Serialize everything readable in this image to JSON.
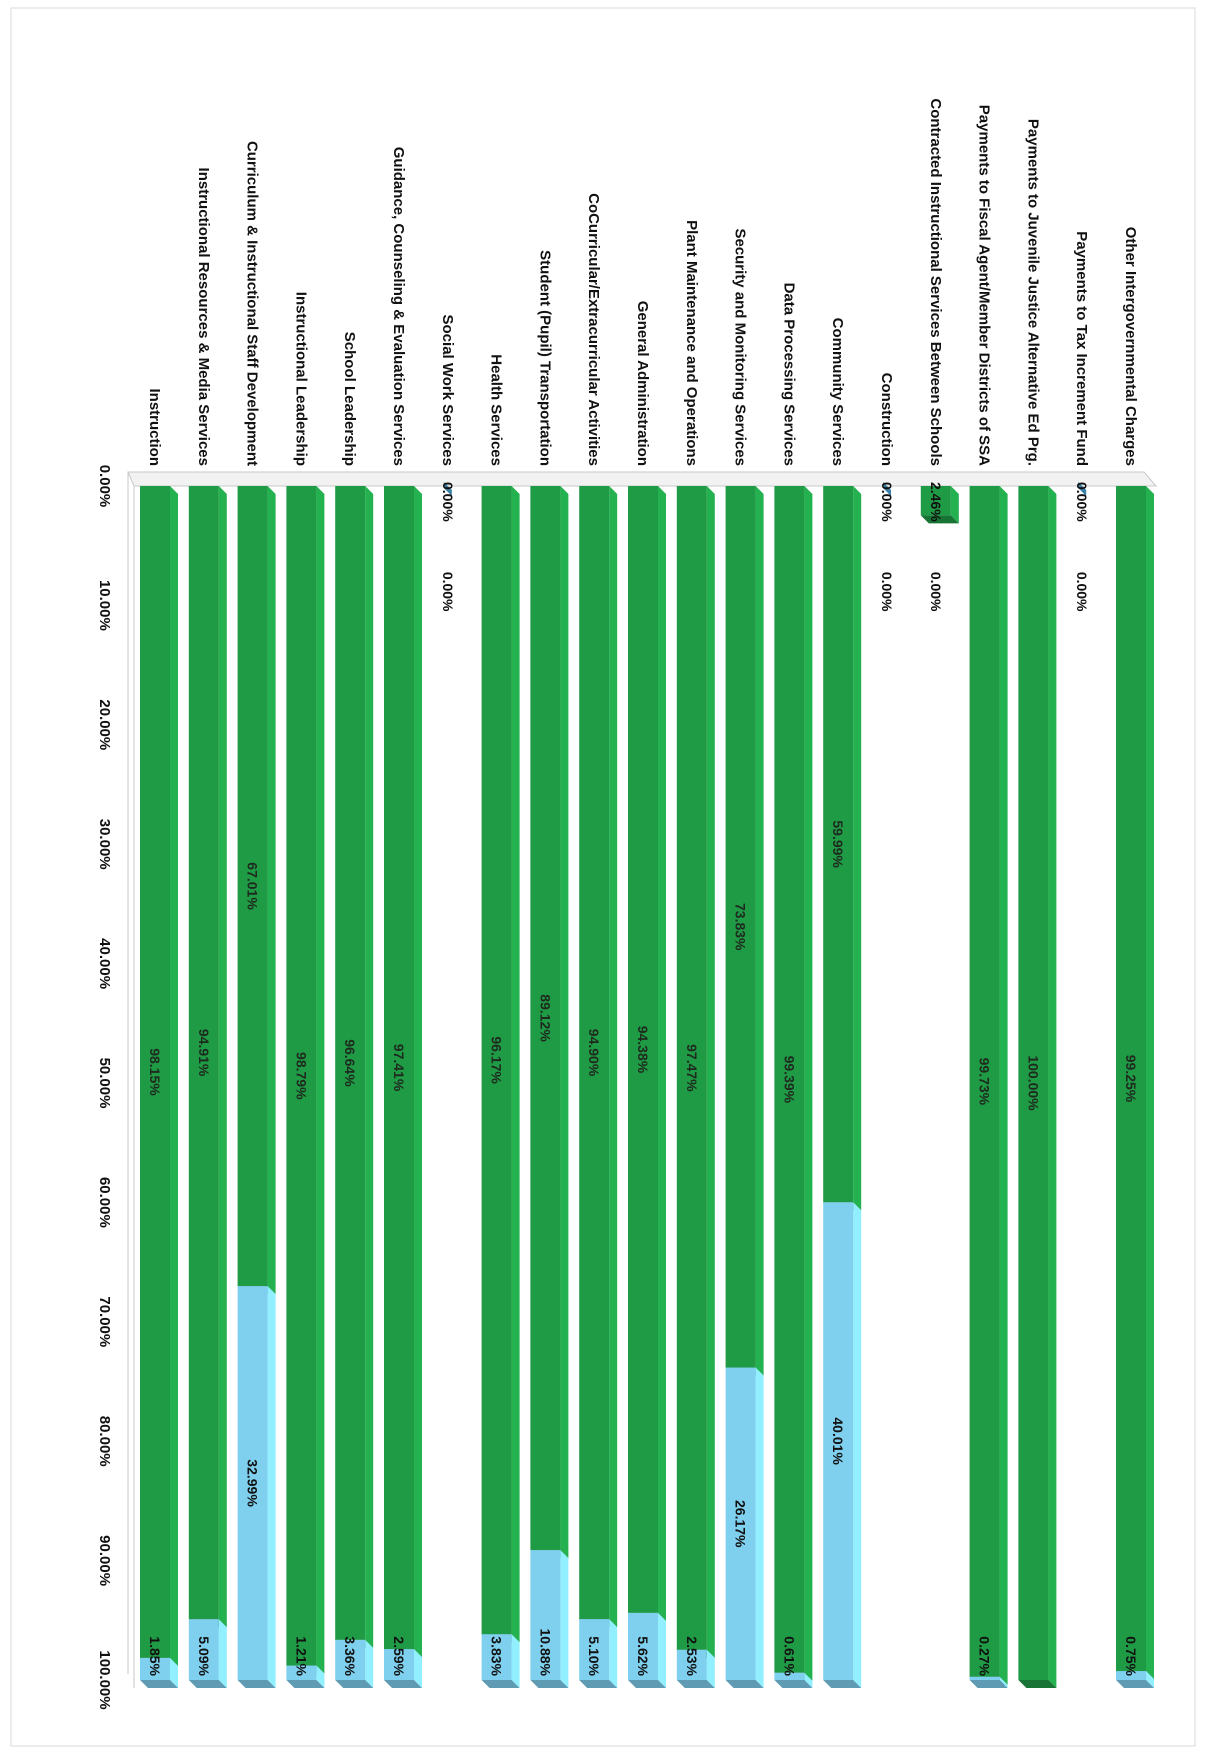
{
  "chart_data": {
    "type": "bar",
    "stacked": true,
    "orientation": "horizontal",
    "rotation": "page rotated 90 degrees clockwise",
    "categories": [
      "Instruction",
      "Instructional Resources & Media Services",
      "Curriculum & Instructional Staff Development",
      "Instructional Leadership",
      "School Leadership",
      "Guidance, Counseling & Evaluation Services",
      "Social Work Services",
      "Health Services",
      "Student (Pupil) Transportation",
      "CoCurricular/Extracurricular Activities",
      "General Administration",
      "Plant Maintenance and Operations",
      "Security and Monitoring Services",
      "Data Processing Services",
      "Community Services",
      "Construction",
      "Contracted Instructional Services Between Schools",
      "Payments to Fiscal Agent/Member Districts of SSA",
      "Payments to Juvenile Justice Alternative Ed Prg.",
      "Payments to Tax Increment Fund",
      "Other Intergovernmental Charges"
    ],
    "series": [
      {
        "color": "#1f9a45",
        "values": [
          98.15,
          94.91,
          67.01,
          98.79,
          96.64,
          97.41,
          0.0,
          96.17,
          89.12,
          94.9,
          94.38,
          97.47,
          73.83,
          99.39,
          59.99,
          0.0,
          2.46,
          99.73,
          100.0,
          0.0,
          99.25
        ],
        "labels": [
          "98.15%",
          "94.91%",
          "67.01%",
          "98.79%",
          "96.64%",
          "97.41%",
          "0.00%",
          "96.17%",
          "89.12%",
          "94.90%",
          "94.38%",
          "97.47%",
          "73.83%",
          "99.39%",
          "59.99%",
          "0.00%",
          "2.46%",
          "99.73%",
          "100.00%",
          "0.00%",
          "99.25%"
        ]
      },
      {
        "color": "#7fd0ee",
        "values": [
          1.85,
          5.09,
          32.99,
          1.21,
          3.36,
          2.59,
          0.0,
          3.83,
          10.88,
          5.1,
          5.62,
          2.53,
          26.17,
          0.61,
          40.01,
          0.0,
          0.0,
          0.27,
          0.0,
          0.0,
          0.75
        ],
        "labels": [
          "1.85%",
          "5.09%",
          "32.99%",
          "1.21%",
          "3.36%",
          "2.59%",
          "0.00%",
          "3.83%",
          "10.88%",
          "5.10%",
          "5.62%",
          "2.53%",
          "26.17%",
          "0.61%",
          "40.01%",
          "0.00%",
          "0.00%",
          "0.27%",
          "",
          "0.00%",
          "0.75%"
        ]
      }
    ],
    "xlim": [
      0,
      100
    ],
    "ticks": [
      "0.00%",
      "10.00%",
      "20.00%",
      "30.00%",
      "40.00%",
      "50.00%",
      "60.00%",
      "70.00%",
      "80.00%",
      "90.00%",
      "100.00%"
    ],
    "grid": false,
    "legend": "none"
  }
}
